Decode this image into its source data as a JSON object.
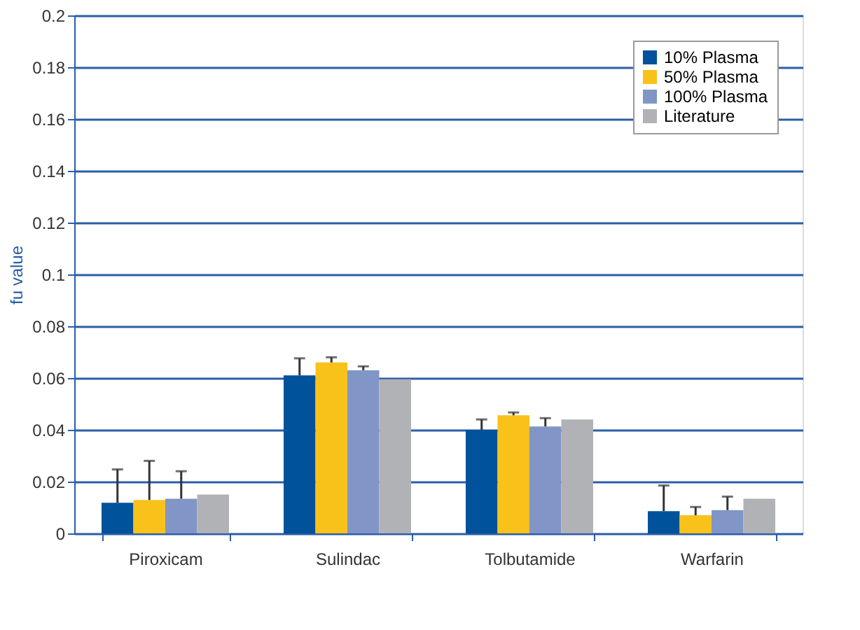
{
  "chart_data": {
    "type": "bar",
    "ylabel": "fu value",
    "categories": [
      "Piroxicam",
      "Sulindac",
      "Tolbutamide",
      "Warfarin"
    ],
    "series": [
      {
        "name": "10% Plasma",
        "color": "#00529b",
        "values": [
          0.0118,
          0.061,
          0.04,
          0.0086
        ],
        "errors": [
          [
            0.0118,
            0.0247
          ],
          [
            0.061,
            0.0676
          ],
          [
            0.04,
            0.044
          ],
          [
            0.0086,
            0.0185
          ]
        ]
      },
      {
        "name": "50% Plasma",
        "color": "#f9c21b",
        "values": [
          0.0129,
          0.066,
          0.0456,
          0.007
        ],
        "errors": [
          [
            0.0129,
            0.028
          ],
          [
            0.066,
            0.068
          ],
          [
            0.0456,
            0.0467
          ],
          [
            0.007,
            0.0102
          ]
        ]
      },
      {
        "name": "100% Plasma",
        "color": "#8195c6",
        "values": [
          0.0134,
          0.063,
          0.0413,
          0.009
        ],
        "errors": [
          [
            0.0134,
            0.024
          ],
          [
            0.063,
            0.0645
          ],
          [
            0.0413,
            0.0445
          ],
          [
            0.009,
            0.0142
          ]
        ]
      },
      {
        "name": "Literature",
        "color": "#b1b2b5",
        "values": [
          0.015,
          0.0595,
          0.044,
          0.0134
        ]
      }
    ],
    "ylim": [
      0,
      0.2
    ],
    "yticks": [
      0,
      0.02,
      0.04,
      0.06,
      0.08,
      0.1,
      0.12,
      0.14,
      0.16,
      0.18,
      0.2
    ],
    "grid": "y",
    "legend": "top right"
  }
}
